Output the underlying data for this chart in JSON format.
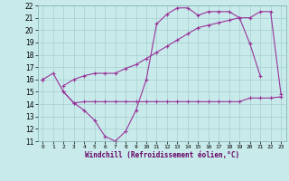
{
  "xlabel": "Windchill (Refroidissement éolien,°C)",
  "x": [
    0,
    1,
    2,
    3,
    4,
    5,
    6,
    7,
    8,
    9,
    10,
    11,
    12,
    13,
    14,
    15,
    16,
    17,
    18,
    19,
    20,
    21,
    22,
    23
  ],
  "line1": [
    16.0,
    16.5,
    15.0,
    14.1,
    13.5,
    12.7,
    11.4,
    11.0,
    11.8,
    13.5,
    16.0,
    20.5,
    21.3,
    21.8,
    21.8,
    21.2,
    21.5,
    21.5,
    21.5,
    21.0,
    18.9,
    16.3,
    null,
    null
  ],
  "line2": [
    16.0,
    null,
    15.0,
    14.1,
    14.2,
    14.2,
    14.2,
    14.2,
    14.2,
    14.2,
    14.2,
    14.2,
    14.2,
    14.2,
    14.2,
    14.2,
    14.2,
    14.2,
    14.2,
    14.2,
    14.5,
    14.5,
    14.5,
    14.6
  ],
  "line3": [
    16.0,
    null,
    15.5,
    16.0,
    16.3,
    16.5,
    16.5,
    16.5,
    16.9,
    17.2,
    17.7,
    18.2,
    18.7,
    19.2,
    19.7,
    20.2,
    20.4,
    20.6,
    20.8,
    21.0,
    21.0,
    21.5,
    21.5,
    14.8
  ],
  "ylim": [
    11,
    22
  ],
  "xlim": [
    -0.5,
    23.5
  ],
  "yticks": [
    11,
    12,
    13,
    14,
    15,
    16,
    17,
    18,
    19,
    20,
    21,
    22
  ],
  "xticks": [
    0,
    1,
    2,
    3,
    4,
    5,
    6,
    7,
    8,
    9,
    10,
    11,
    12,
    13,
    14,
    15,
    16,
    17,
    18,
    19,
    20,
    21,
    22,
    23
  ],
  "line_color": "#993399",
  "bg_color": "#c8eaea",
  "grid_color": "#9ec8c8",
  "label_color": "#660066"
}
